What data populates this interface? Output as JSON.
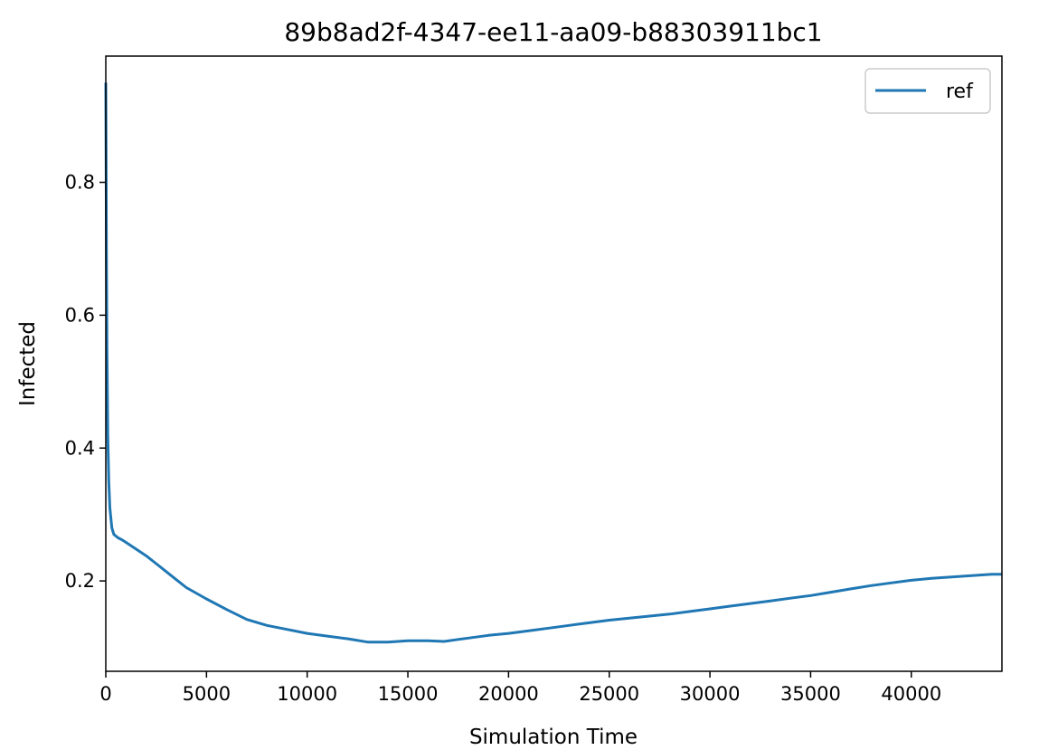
{
  "chart_data": {
    "type": "line",
    "title": "89b8ad2f-4347-ee11-aa09-b88303911bc1",
    "xlabel": "Simulation Time",
    "ylabel": "Infected",
    "xlim": [
      0,
      44500
    ],
    "ylim": [
      0.064,
      0.99
    ],
    "xticks": [
      0,
      5000,
      10000,
      15000,
      20000,
      25000,
      30000,
      35000,
      40000
    ],
    "xtick_labels": [
      "0",
      "5000",
      "10000",
      "15000",
      "20000",
      "25000",
      "30000",
      "35000",
      "40000"
    ],
    "yticks": [
      0.2,
      0.4,
      0.6,
      0.8
    ],
    "ytick_labels": [
      "0.2",
      "0.4",
      "0.6",
      "0.8"
    ],
    "grid": false,
    "legend_position": "top-right",
    "series": [
      {
        "name": "ref",
        "color": "#1f77b4",
        "x": [
          0,
          30,
          60,
          100,
          150,
          200,
          300,
          400,
          600,
          800,
          1000,
          1500,
          2000,
          2500,
          3000,
          3500,
          4000,
          5000,
          6000,
          7000,
          8000,
          9000,
          10000,
          11000,
          12000,
          13000,
          14000,
          15000,
          16000,
          16800,
          17500,
          18000,
          19000,
          20000,
          21000,
          22000,
          23000,
          24000,
          25000,
          26000,
          27000,
          28000,
          29000,
          30000,
          31000,
          32000,
          33000,
          34000,
          35000,
          36000,
          37000,
          38000,
          39000,
          40000,
          41000,
          42000,
          43000,
          44000,
          44500
        ],
        "y": [
          0.95,
          0.7,
          0.55,
          0.42,
          0.35,
          0.31,
          0.28,
          0.27,
          0.265,
          0.262,
          0.258,
          0.248,
          0.238,
          0.226,
          0.214,
          0.202,
          0.19,
          0.173,
          0.157,
          0.142,
          0.133,
          0.127,
          0.121,
          0.117,
          0.113,
          0.108,
          0.108,
          0.11,
          0.11,
          0.109,
          0.112,
          0.114,
          0.118,
          0.121,
          0.125,
          0.129,
          0.133,
          0.137,
          0.141,
          0.144,
          0.147,
          0.15,
          0.154,
          0.158,
          0.162,
          0.166,
          0.17,
          0.174,
          0.178,
          0.183,
          0.188,
          0.193,
          0.197,
          0.201,
          0.204,
          0.206,
          0.208,
          0.21,
          0.21
        ]
      }
    ]
  }
}
